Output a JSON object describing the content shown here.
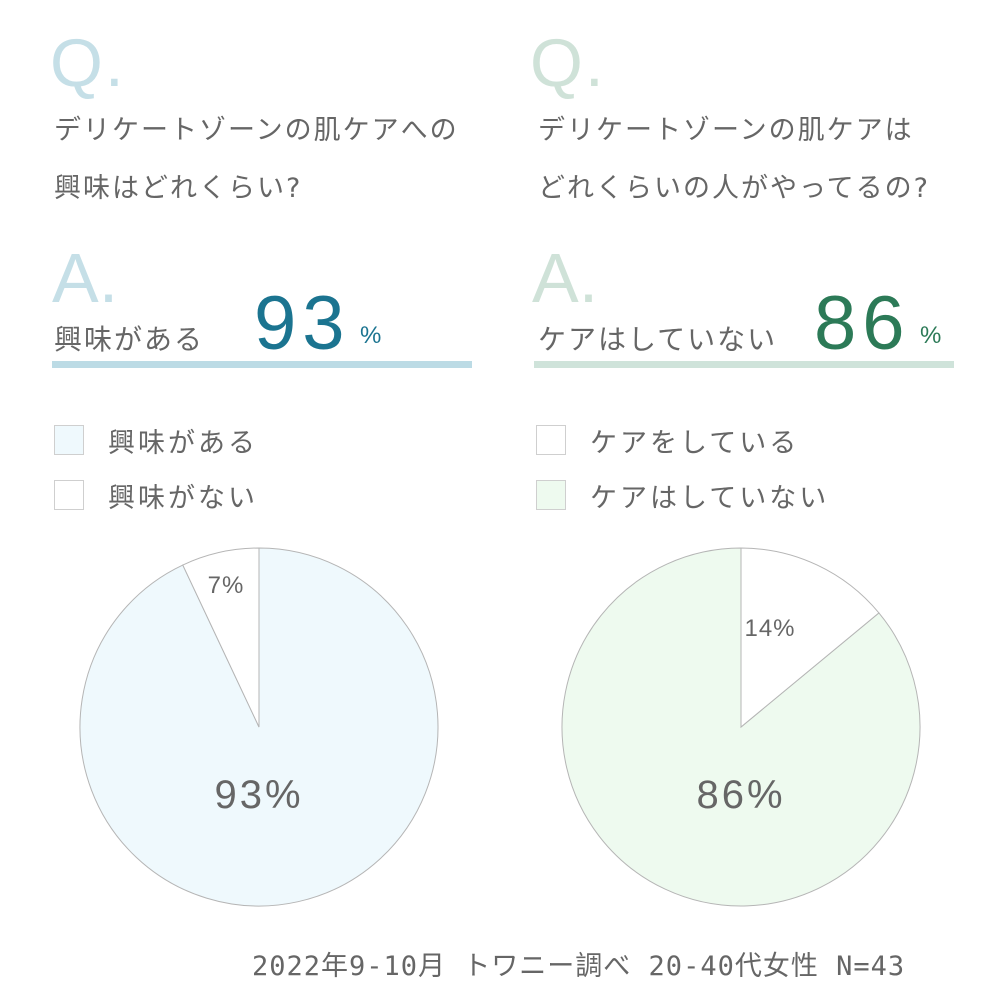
{
  "colors": {
    "left_accent": "#1b7490",
    "left_light": "#c5dfe7",
    "left_rule": "#bcdbe5",
    "left_fill": "#eff9fd",
    "right_accent": "#2c7a57",
    "right_light": "#cfe2d8",
    "right_rule": "#cfe3da",
    "right_fill": "#eefaef",
    "other_fill": "#ffffff",
    "stroke": "#b5b5b5",
    "text": "#666666"
  },
  "left": {
    "q_mark": "Q.",
    "question_line1": "デリケートゾーンの肌ケアへの",
    "question_line2": "興味はどれくらい?",
    "a_mark": "A.",
    "answer_label": "興味がある",
    "answer_number": "93",
    "answer_unit": "%",
    "legend": [
      {
        "label": "興味がある"
      },
      {
        "label": "興味がない"
      }
    ]
  },
  "right": {
    "q_mark": "Q.",
    "question_line1": "デリケートゾーンの肌ケアは",
    "question_line2": "どれくらいの人がやってるの?",
    "a_mark": "A.",
    "answer_label": "ケアはしていない",
    "answer_number": "86",
    "answer_unit": "%",
    "legend": [
      {
        "label": "ケアをしている"
      },
      {
        "label": "ケアはしていない"
      }
    ]
  },
  "chart_data": [
    {
      "type": "pie",
      "title": "",
      "slices": [
        {
          "name": "興味がある",
          "value": 93,
          "label": "93%"
        },
        {
          "name": "興味がない",
          "value": 7,
          "label": "7%"
        }
      ]
    },
    {
      "type": "pie",
      "title": "",
      "slices": [
        {
          "name": "ケアはしていない",
          "value": 86,
          "label": "86%"
        },
        {
          "name": "ケアをしている",
          "value": 14,
          "label": "14%"
        }
      ]
    }
  ],
  "footer": "2022年9-10月 トワニー調べ 20-40代女性 N=43"
}
